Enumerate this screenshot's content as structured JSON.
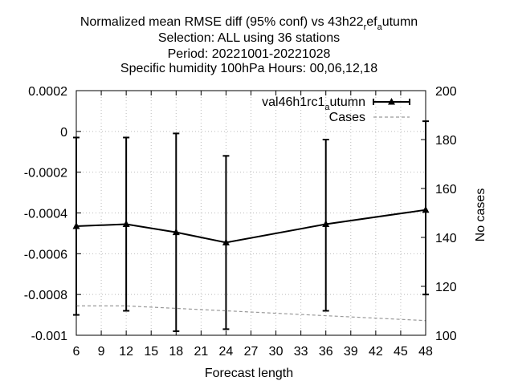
{
  "chart_data": {
    "type": "line",
    "title_lines": [
      [
        "Normalized mean RMSE diff (95% conf) vs 43h22",
        "r",
        "ef",
        "a",
        "utumn"
      ],
      [
        "Selection: ALL using    36 stations"
      ],
      [
        "Period: 20221001-20221028"
      ],
      [
        "Specific humidity 100hPa   Hours:  00,06,12,18"
      ]
    ],
    "xlabel": "Forecast length",
    "ylabel": "",
    "y2label": "No cases",
    "xlim": [
      6,
      48
    ],
    "ylim": [
      -0.001,
      0.0002
    ],
    "y2lim": [
      100,
      200
    ],
    "x_ticks": [
      "6",
      "9",
      "12",
      "15",
      "18",
      "21",
      "24",
      "27",
      "30",
      "33",
      "36",
      "39",
      "42",
      "45",
      "48"
    ],
    "y_ticks": [
      "0.0002",
      "0",
      "-0.0002",
      "-0.0004",
      "-0.0006",
      "-0.0008",
      "-0.001"
    ],
    "y2_ticks": [
      "200",
      "180",
      "160",
      "140",
      "120",
      "100"
    ],
    "grid": true,
    "legend_position": "top-right",
    "series": [
      {
        "name_parts": [
          "val46h1rc1",
          "a",
          "utumn"
        ],
        "x": [
          6,
          12,
          18,
          24,
          36,
          48
        ],
        "y": [
          -0.000465,
          -0.000455,
          -0.000495,
          -0.000545,
          -0.000455,
          -0.000385
        ],
        "err_low": [
          -0.0009,
          -0.00088,
          -0.00098,
          -0.00097,
          -0.00088,
          -0.0008
        ],
        "err_high": [
          -3e-05,
          -3e-05,
          -1e-05,
          -0.00012,
          -4e-05,
          5e-05
        ],
        "color": "#000000"
      },
      {
        "name": "Cases",
        "axis": "y2",
        "x": [
          6,
          12,
          18,
          24,
          36,
          48
        ],
        "y": [
          112,
          112,
          111,
          110,
          108,
          106
        ],
        "color": "#999999",
        "dashed": true
      }
    ]
  }
}
